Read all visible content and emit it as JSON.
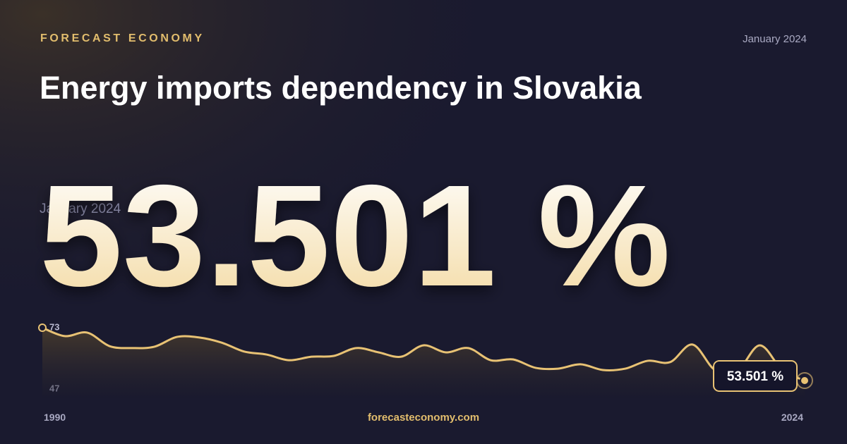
{
  "chart_data": {
    "type": "line",
    "brand": "FORECAST ECONOMY",
    "date": "January 2024",
    "title": "Energy imports dependency in Slovakia",
    "source": "forecasteconomy.com",
    "color": "#e8c274",
    "x": [
      1990,
      1991,
      1992,
      1993,
      1994,
      1995,
      1996,
      1997,
      1998,
      1999,
      2000,
      2001,
      2002,
      2003,
      2004,
      2005,
      2006,
      2007,
      2008,
      2009,
      2010,
      2011,
      2012,
      2013,
      2014,
      2015,
      2016,
      2017,
      2018,
      2019,
      2020,
      2021,
      2022,
      2023,
      2024
    ],
    "values": [
      73.0,
      69.9,
      71.2,
      66.2,
      65.5,
      66.0,
      69.6,
      69.4,
      67.5,
      64.2,
      63.1,
      61.0,
      62.3,
      62.6,
      65.5,
      63.9,
      62.3,
      66.5,
      63.9,
      65.5,
      61.0,
      61.3,
      58.2,
      57.9,
      59.5,
      57.4,
      57.9,
      60.8,
      60.3,
      66.8,
      57.4,
      57.1,
      66.5,
      57.4,
      53.501
    ],
    "value_labels": [
      null,
      null,
      null,
      null,
      null,
      null,
      null,
      null,
      null,
      null,
      null,
      null,
      null,
      null,
      null,
      null,
      null,
      null,
      null,
      null,
      null,
      null,
      null,
      null,
      null,
      null,
      null,
      null,
      null,
      null,
      null,
      null,
      null,
      null,
      "53.501 %"
    ],
    "xlim": [
      1990,
      2024
    ],
    "xticks": [
      1990,
      2024
    ],
    "ylim": [
      47,
      73
    ],
    "yticks": [
      47,
      73
    ]
  }
}
